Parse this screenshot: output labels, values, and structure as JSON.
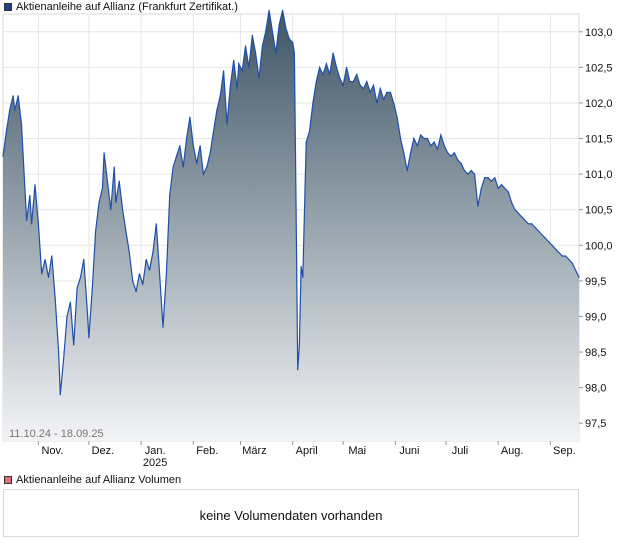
{
  "legend": {
    "price_label": "Aktienanleihe auf Allianz  (Frankfurt Zertifikat.)",
    "price_color": "#1f3f8f",
    "volume_label": "Aktienanleihe auf Allianz  Volumen",
    "volume_color": "#e07070"
  },
  "chart_data": {
    "type": "area",
    "series": [
      {
        "name": "Aktienanleihe auf Allianz  (Frankfurt Zertifikat.)",
        "line_color": "#1f4fa8",
        "fill_top_color": "#3e5566",
        "fill_bottom_color": "#f3f4f6",
        "points": [
          [
            "2024-10-11",
            101.25
          ],
          [
            "2024-10-13",
            101.6
          ],
          [
            "2024-10-15",
            101.9
          ],
          [
            "2024-10-17",
            102.1
          ],
          [
            "2024-10-18",
            101.9
          ],
          [
            "2024-10-20",
            102.1
          ],
          [
            "2024-10-22",
            101.7
          ],
          [
            "2024-10-24",
            100.8
          ],
          [
            "2024-10-25",
            100.35
          ],
          [
            "2024-10-27",
            100.7
          ],
          [
            "2024-10-28",
            100.3
          ],
          [
            "2024-10-30",
            100.85
          ],
          [
            "2024-11-01",
            100.3
          ],
          [
            "2024-11-03",
            99.6
          ],
          [
            "2024-11-05",
            99.8
          ],
          [
            "2024-11-07",
            99.55
          ],
          [
            "2024-11-09",
            99.85
          ],
          [
            "2024-11-11",
            99.25
          ],
          [
            "2024-11-13",
            98.5
          ],
          [
            "2024-11-14",
            97.9
          ],
          [
            "2024-11-16",
            98.4
          ],
          [
            "2024-11-18",
            99.0
          ],
          [
            "2024-11-20",
            99.2
          ],
          [
            "2024-11-22",
            98.6
          ],
          [
            "2024-11-24",
            99.4
          ],
          [
            "2024-11-26",
            99.55
          ],
          [
            "2024-11-28",
            99.8
          ],
          [
            "2024-11-30",
            99.1
          ],
          [
            "2024-12-01",
            98.7
          ],
          [
            "2024-12-03",
            99.4
          ],
          [
            "2024-12-05",
            100.2
          ],
          [
            "2024-12-07",
            100.6
          ],
          [
            "2024-12-09",
            100.8
          ],
          [
            "2024-12-10",
            101.3
          ],
          [
            "2024-12-12",
            100.9
          ],
          [
            "2024-12-14",
            100.5
          ],
          [
            "2024-12-16",
            101.1
          ],
          [
            "2024-12-17",
            100.6
          ],
          [
            "2024-12-19",
            100.9
          ],
          [
            "2024-12-21",
            100.5
          ],
          [
            "2024-12-23",
            100.2
          ],
          [
            "2024-12-25",
            99.9
          ],
          [
            "2024-12-27",
            99.5
          ],
          [
            "2024-12-29",
            99.35
          ],
          [
            "2024-12-31",
            99.6
          ],
          [
            "2025-01-02",
            99.45
          ],
          [
            "2025-01-04",
            99.8
          ],
          [
            "2025-01-06",
            99.65
          ],
          [
            "2025-01-08",
            99.9
          ],
          [
            "2025-01-10",
            100.3
          ],
          [
            "2025-01-12",
            99.6
          ],
          [
            "2025-01-14",
            98.85
          ],
          [
            "2025-01-16",
            99.6
          ],
          [
            "2025-01-18",
            100.7
          ],
          [
            "2025-01-20",
            101.1
          ],
          [
            "2025-01-22",
            101.25
          ],
          [
            "2025-01-24",
            101.4
          ],
          [
            "2025-01-26",
            101.1
          ],
          [
            "2025-01-28",
            101.5
          ],
          [
            "2025-01-30",
            101.8
          ],
          [
            "2025-02-01",
            101.4
          ],
          [
            "2025-02-03",
            101.15
          ],
          [
            "2025-02-05",
            101.4
          ],
          [
            "2025-02-07",
            101.0
          ],
          [
            "2025-02-09",
            101.1
          ],
          [
            "2025-02-11",
            101.3
          ],
          [
            "2025-02-13",
            101.6
          ],
          [
            "2025-02-15",
            101.9
          ],
          [
            "2025-02-17",
            102.1
          ],
          [
            "2025-02-19",
            102.45
          ],
          [
            "2025-02-21",
            101.7
          ],
          [
            "2025-02-23",
            102.25
          ],
          [
            "2025-02-25",
            102.6
          ],
          [
            "2025-02-27",
            102.2
          ],
          [
            "2025-02-28",
            102.55
          ],
          [
            "2025-03-02",
            102.45
          ],
          [
            "2025-03-04",
            102.8
          ],
          [
            "2025-03-06",
            102.5
          ],
          [
            "2025-03-08",
            102.95
          ],
          [
            "2025-03-10",
            102.7
          ],
          [
            "2025-03-12",
            102.35
          ],
          [
            "2025-03-14",
            102.8
          ],
          [
            "2025-03-16",
            103.0
          ],
          [
            "2025-03-18",
            103.3
          ],
          [
            "2025-03-20",
            103.0
          ],
          [
            "2025-03-22",
            102.7
          ],
          [
            "2025-03-24",
            103.1
          ],
          [
            "2025-03-26",
            103.3
          ],
          [
            "2025-03-28",
            103.05
          ],
          [
            "2025-03-30",
            102.9
          ],
          [
            "2025-04-01",
            102.85
          ],
          [
            "2025-04-02",
            102.7
          ],
          [
            "2025-04-03",
            100.5
          ],
          [
            "2025-04-04",
            98.25
          ],
          [
            "2025-04-05",
            98.6
          ],
          [
            "2025-04-06",
            99.7
          ],
          [
            "2025-04-07",
            99.55
          ],
          [
            "2025-04-09",
            101.45
          ],
          [
            "2025-04-11",
            101.6
          ],
          [
            "2025-04-13",
            102.0
          ],
          [
            "2025-04-15",
            102.3
          ],
          [
            "2025-04-17",
            102.5
          ],
          [
            "2025-04-19",
            102.4
          ],
          [
            "2025-04-21",
            102.55
          ],
          [
            "2025-04-23",
            102.4
          ],
          [
            "2025-04-25",
            102.7
          ],
          [
            "2025-04-27",
            102.5
          ],
          [
            "2025-04-29",
            102.35
          ],
          [
            "2025-05-01",
            102.25
          ],
          [
            "2025-05-03",
            102.5
          ],
          [
            "2025-05-05",
            102.3
          ],
          [
            "2025-05-07",
            102.3
          ],
          [
            "2025-05-09",
            102.4
          ],
          [
            "2025-05-11",
            102.25
          ],
          [
            "2025-05-13",
            102.2
          ],
          [
            "2025-05-15",
            102.3
          ],
          [
            "2025-05-17",
            102.15
          ],
          [
            "2025-05-19",
            102.25
          ],
          [
            "2025-05-21",
            102.0
          ],
          [
            "2025-05-23",
            102.2
          ],
          [
            "2025-05-25",
            102.05
          ],
          [
            "2025-05-27",
            102.15
          ],
          [
            "2025-05-29",
            102.15
          ],
          [
            "2025-05-31",
            102.0
          ],
          [
            "2025-06-02",
            101.8
          ],
          [
            "2025-06-04",
            101.5
          ],
          [
            "2025-06-06",
            101.3
          ],
          [
            "2025-06-08",
            101.05
          ],
          [
            "2025-06-10",
            101.3
          ],
          [
            "2025-06-12",
            101.5
          ],
          [
            "2025-06-14",
            101.4
          ],
          [
            "2025-06-16",
            101.55
          ],
          [
            "2025-06-18",
            101.5
          ],
          [
            "2025-06-20",
            101.5
          ],
          [
            "2025-06-22",
            101.4
          ],
          [
            "2025-06-24",
            101.45
          ],
          [
            "2025-06-26",
            101.35
          ],
          [
            "2025-06-28",
            101.55
          ],
          [
            "2025-06-30",
            101.4
          ],
          [
            "2025-07-02",
            101.3
          ],
          [
            "2025-07-04",
            101.25
          ],
          [
            "2025-07-06",
            101.3
          ],
          [
            "2025-07-08",
            101.2
          ],
          [
            "2025-07-10",
            101.15
          ],
          [
            "2025-07-12",
            101.05
          ],
          [
            "2025-07-14",
            101.0
          ],
          [
            "2025-07-16",
            101.05
          ],
          [
            "2025-07-18",
            101.0
          ],
          [
            "2025-07-20",
            100.55
          ],
          [
            "2025-07-22",
            100.8
          ],
          [
            "2025-07-24",
            100.95
          ],
          [
            "2025-07-26",
            100.95
          ],
          [
            "2025-07-28",
            100.9
          ],
          [
            "2025-07-30",
            100.95
          ],
          [
            "2025-08-01",
            100.8
          ],
          [
            "2025-08-03",
            100.85
          ],
          [
            "2025-08-05",
            100.8
          ],
          [
            "2025-08-07",
            100.75
          ],
          [
            "2025-08-09",
            100.6
          ],
          [
            "2025-08-11",
            100.5
          ],
          [
            "2025-08-13",
            100.45
          ],
          [
            "2025-08-15",
            100.4
          ],
          [
            "2025-08-17",
            100.35
          ],
          [
            "2025-08-19",
            100.3
          ],
          [
            "2025-08-21",
            100.3
          ],
          [
            "2025-08-23",
            100.25
          ],
          [
            "2025-08-25",
            100.2
          ],
          [
            "2025-08-27",
            100.15
          ],
          [
            "2025-08-29",
            100.1
          ],
          [
            "2025-08-31",
            100.05
          ],
          [
            "2025-09-02",
            100.0
          ],
          [
            "2025-09-04",
            99.95
          ],
          [
            "2025-09-06",
            99.9
          ],
          [
            "2025-09-08",
            99.85
          ],
          [
            "2025-09-10",
            99.85
          ],
          [
            "2025-09-12",
            99.8
          ],
          [
            "2025-09-14",
            99.75
          ],
          [
            "2025-09-16",
            99.65
          ],
          [
            "2025-09-18",
            99.55
          ]
        ]
      }
    ],
    "ylim": [
      97.25,
      103.25
    ],
    "y_ticks": [
      97.5,
      98.0,
      98.5,
      99.0,
      99.5,
      100.0,
      100.5,
      101.0,
      101.5,
      102.0,
      102.5,
      103.0
    ],
    "y_tick_labels": [
      "97,5",
      "98,0",
      "98,5",
      "99,0",
      "99,5",
      "100,0",
      "100,5",
      "101,0",
      "101,5",
      "102,0",
      "102,5",
      "103,0"
    ],
    "xlim": [
      "2024-10-11",
      "2025-09-18"
    ],
    "x_ticks": [
      {
        "date": "2024-11-01",
        "label": "Nov."
      },
      {
        "date": "2024-12-01",
        "label": "Dez."
      },
      {
        "date": "2025-01-01",
        "label": "Jan.",
        "sublabel": "2025"
      },
      {
        "date": "2025-02-01",
        "label": "Feb."
      },
      {
        "date": "2025-03-01",
        "label": "März"
      },
      {
        "date": "2025-04-01",
        "label": "April"
      },
      {
        "date": "2025-05-01",
        "label": "Mai"
      },
      {
        "date": "2025-06-01",
        "label": "Juni"
      },
      {
        "date": "2025-07-01",
        "label": "Juli"
      },
      {
        "date": "2025-08-01",
        "label": "Aug."
      },
      {
        "date": "2025-09-01",
        "label": "Sep."
      }
    ],
    "range_label": "11.10.24 - 18.09.25",
    "grid": true,
    "y_axis_side": "right"
  },
  "volume": {
    "empty_text": "keine Volumendaten vorhanden"
  }
}
